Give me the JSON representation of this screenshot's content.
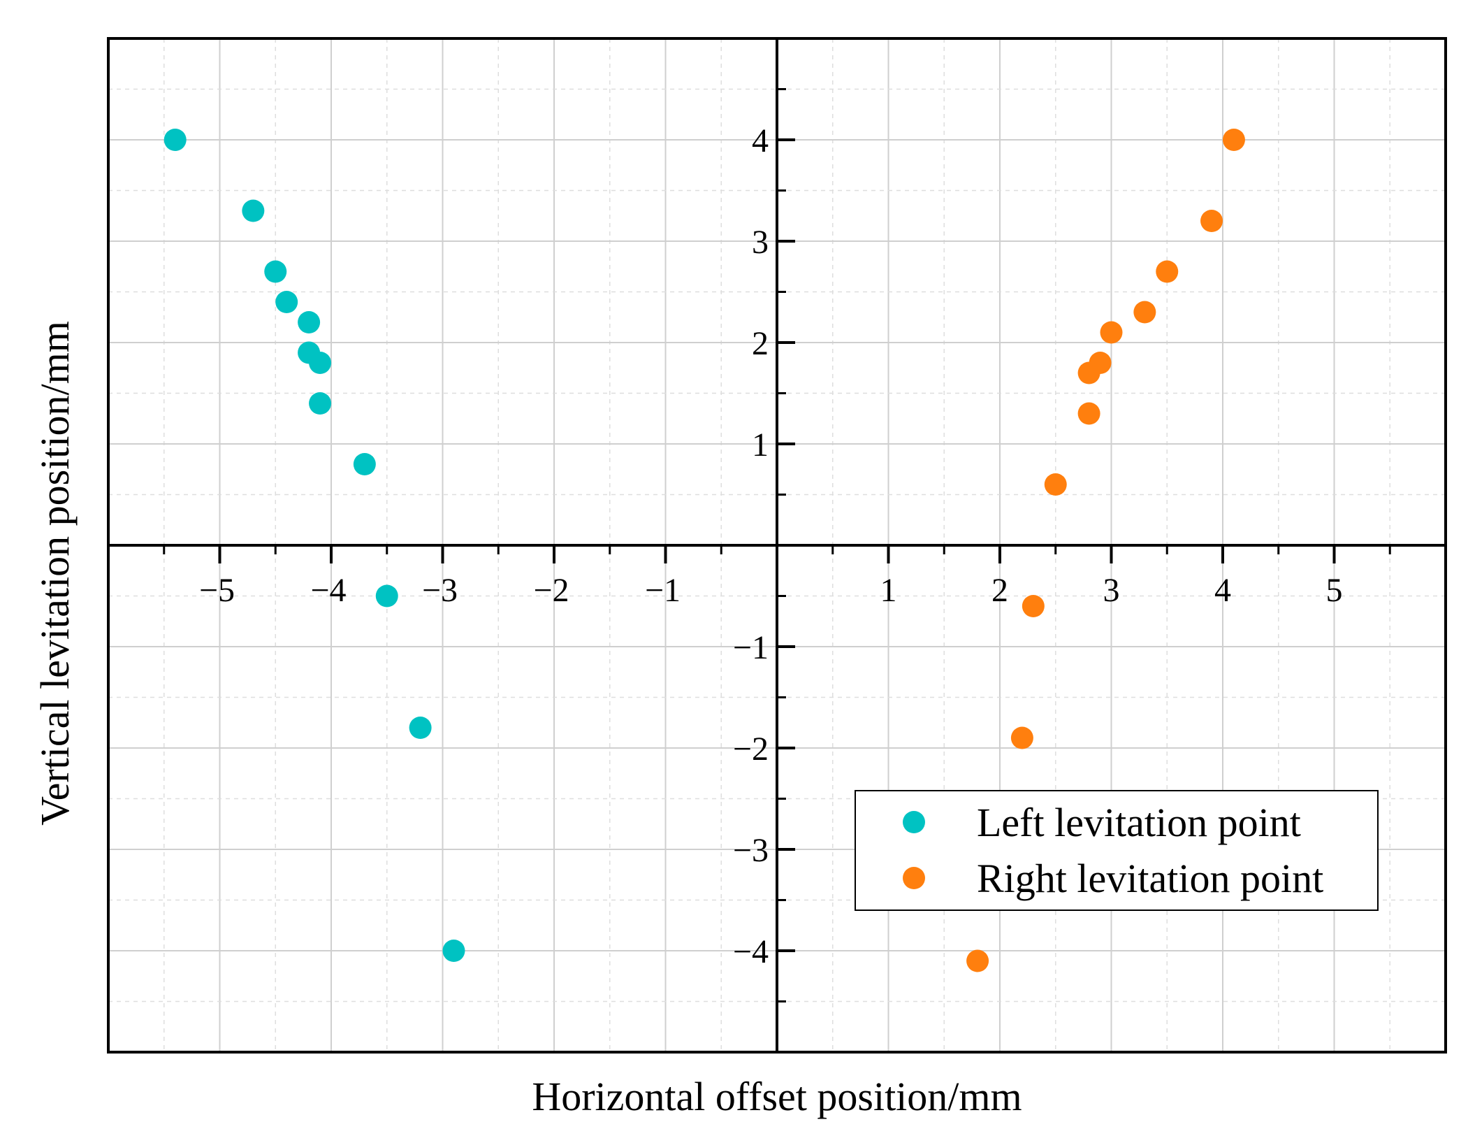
{
  "chart_data": {
    "type": "scatter",
    "title": "",
    "xlabel": "Horizontal offset position/mm",
    "ylabel": "Vertical levitation position/mm",
    "xlim": [
      -6,
      6
    ],
    "ylim": [
      -5,
      5
    ],
    "x_ticks": [
      -5,
      -4,
      -3,
      -2,
      -1,
      1,
      2,
      3,
      4,
      5
    ],
    "x_tick_labels": [
      "−5",
      "−4",
      "−3",
      "−2",
      "−1",
      "1",
      "2",
      "3",
      "4",
      "5"
    ],
    "y_ticks": [
      4,
      3,
      2,
      1,
      -1,
      -2,
      -3,
      -4
    ],
    "y_tick_labels": [
      "4",
      "3",
      "2",
      "1",
      "−1",
      "−2",
      "−3",
      "−4"
    ],
    "grid": true,
    "legend_position": "bottom-right",
    "series": [
      {
        "name": "Left levitation point",
        "color": "#00C2C2",
        "points": [
          [
            -5.4,
            4.0
          ],
          [
            -4.7,
            3.3
          ],
          [
            -4.5,
            2.7
          ],
          [
            -4.4,
            2.4
          ],
          [
            -4.2,
            2.2
          ],
          [
            -4.2,
            1.9
          ],
          [
            -4.1,
            1.8
          ],
          [
            -4.1,
            1.4
          ],
          [
            -3.7,
            0.8
          ],
          [
            -3.5,
            -0.5
          ],
          [
            -3.2,
            -1.8
          ],
          [
            -2.9,
            -4.0
          ]
        ]
      },
      {
        "name": "Right levitation point",
        "color": "#FF7F0E",
        "points": [
          [
            4.1,
            4.0
          ],
          [
            3.9,
            3.2
          ],
          [
            3.5,
            2.7
          ],
          [
            3.3,
            2.3
          ],
          [
            3.0,
            2.1
          ],
          [
            2.9,
            1.8
          ],
          [
            2.8,
            1.7
          ],
          [
            2.8,
            1.3
          ],
          [
            2.5,
            0.6
          ],
          [
            2.3,
            -0.6
          ],
          [
            2.2,
            -1.9
          ],
          [
            1.8,
            -4.1
          ]
        ]
      }
    ]
  }
}
